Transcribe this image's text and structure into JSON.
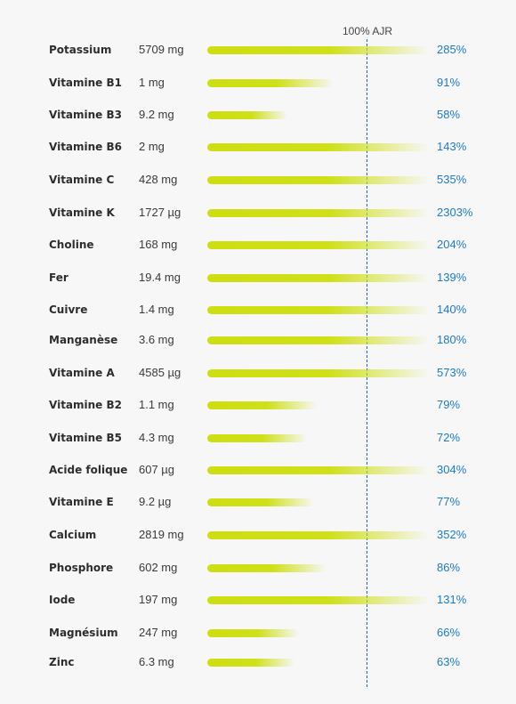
{
  "chart_data": {
    "type": "bar",
    "reference_label": "100% AJR",
    "reference_value": 100,
    "colors": {
      "bar": "#cdde12",
      "reference_line": "#1565c0",
      "percent_text": "#1e7bc7"
    },
    "rows": [
      {
        "nutrient": "Potassium",
        "amount": "5709 mg",
        "percent_label": "285%",
        "percent": 285
      },
      {
        "nutrient": "Vitamine B1",
        "amount": "1 mg",
        "percent_label": "91%",
        "percent": 91
      },
      {
        "nutrient": "Vitamine B3",
        "amount": "9.2 mg",
        "percent_label": "58%",
        "percent": 58
      },
      {
        "nutrient": "Vitamine B6",
        "amount": "2 mg",
        "percent_label": "143%",
        "percent": 143
      },
      {
        "nutrient": "Vitamine C",
        "amount": "428 mg",
        "percent_label": "535%",
        "percent": 535
      },
      {
        "nutrient": "Vitamine K",
        "amount": "1727 µg",
        "percent_label": "2303%",
        "percent": 2303
      },
      {
        "nutrient": "Choline",
        "amount": "168 mg",
        "percent_label": "204%",
        "percent": 204
      },
      {
        "nutrient": "Fer",
        "amount": "19.4 mg",
        "percent_label": "139%",
        "percent": 139
      },
      {
        "nutrient": "Cuivre",
        "amount": "1.4 mg",
        "percent_label": "140%",
        "percent": 140
      },
      {
        "nutrient": "Manganèse",
        "amount": "3.6 mg",
        "percent_label": "180%",
        "percent": 180
      },
      {
        "nutrient": "Vitamine A",
        "amount": "4585 µg",
        "percent_label": "573%",
        "percent": 573
      },
      {
        "nutrient": "Vitamine B2",
        "amount": "1.1 mg",
        "percent_label": "79%",
        "percent": 79
      },
      {
        "nutrient": "Vitamine B5",
        "amount": "4.3 mg",
        "percent_label": "72%",
        "percent": 72
      },
      {
        "nutrient": "Acide folique",
        "amount": "607 µg",
        "percent_label": "304%",
        "percent": 304
      },
      {
        "nutrient": "Vitamine E",
        "amount": "9.2 µg",
        "percent_label": "77%",
        "percent": 77
      },
      {
        "nutrient": "Calcium",
        "amount": "2819 mg",
        "percent_label": "352%",
        "percent": 352
      },
      {
        "nutrient": "Phosphore",
        "amount": "602 mg",
        "percent_label": "86%",
        "percent": 86
      },
      {
        "nutrient": "Iode",
        "amount": "197 mg",
        "percent_label": "131%",
        "percent": 131
      },
      {
        "nutrient": "Magnésium",
        "amount": "247 mg",
        "percent_label": "66%",
        "percent": 66
      },
      {
        "nutrient": "Zinc",
        "amount": "6.3 mg",
        "percent_label": "63%",
        "percent": 63
      }
    ]
  }
}
